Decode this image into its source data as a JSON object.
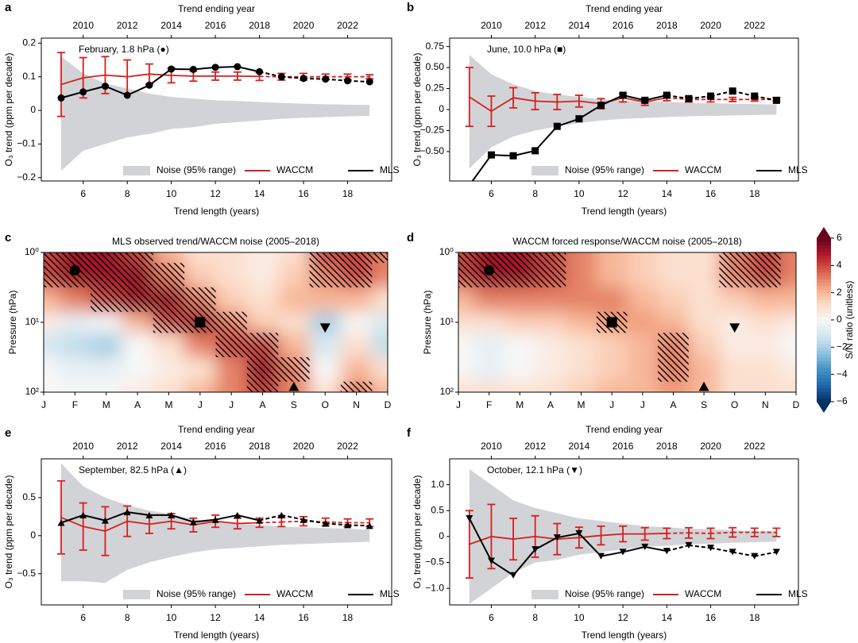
{
  "chart_data": [
    {
      "type": "line",
      "panel": "a",
      "title": "February, 1.8 hPa (●)",
      "xlabel": "Trend length (years)",
      "x2label": "Trend ending year",
      "ylabel": "O₃ trend (ppm per decade)",
      "x": [
        5,
        6,
        7,
        8,
        9,
        10,
        11,
        12,
        13,
        14,
        15,
        16,
        17,
        18,
        19
      ],
      "xlim": [
        4.1,
        20.0
      ],
      "xticks": [
        6,
        8,
        10,
        12,
        14,
        16,
        18
      ],
      "x2lim": [
        2008.1,
        2024.0
      ],
      "x2ticks": [
        2010,
        2012,
        2014,
        2016,
        2018,
        2020,
        2022
      ],
      "ylim": [
        -0.21,
        0.215
      ],
      "yticks": [
        {
          "value": -0.2,
          "label": "−0.2"
        },
        {
          "value": -0.1,
          "label": "−0.1"
        },
        0,
        0.1,
        0.2
      ],
      "dashed_after": 14,
      "legend": "lower center",
      "series": [
        {
          "name": "Noise (95% range)",
          "color": "#d2d3d6",
          "upper": [
            0.16,
            0.11,
            0.08,
            0.065,
            0.05,
            0.04,
            0.035,
            0.03,
            0.028,
            0.025,
            0.022,
            0.02,
            0.018,
            0.017,
            0.016
          ],
          "lower": [
            -0.18,
            -0.12,
            -0.1,
            -0.08,
            -0.07,
            -0.055,
            -0.05,
            -0.04,
            -0.035,
            -0.03,
            -0.025,
            -0.022,
            -0.02,
            -0.018,
            -0.016
          ]
        },
        {
          "name": "WACCM",
          "color": "#d42020",
          "values": [
            0.077,
            0.097,
            0.105,
            0.1,
            0.108,
            0.104,
            0.102,
            0.102,
            0.102,
            0.101,
            0.1,
            0.1,
            0.1,
            0.1,
            0.1
          ],
          "errors": [
            0.095,
            0.06,
            0.055,
            0.05,
            0.03,
            0.022,
            0.015,
            0.012,
            0.012,
            0.012,
            0.01,
            0.01,
            0.008,
            0.008,
            0.006
          ]
        },
        {
          "name": "MLS",
          "color": "#000000",
          "marker": "circle",
          "values": [
            0.037,
            0.055,
            0.072,
            0.045,
            0.075,
            0.123,
            0.122,
            0.128,
            0.13,
            0.115,
            0.1,
            0.095,
            0.093,
            0.088,
            0.085
          ]
        }
      ]
    },
    {
      "type": "line",
      "panel": "b",
      "title": "June, 10.0 hPa (■)",
      "xlabel": "Trend length (years)",
      "x2label": "Trend ending year",
      "ylabel": "O₃ trend (ppm per decade)",
      "x": [
        5,
        6,
        7,
        8,
        9,
        10,
        11,
        12,
        13,
        14,
        15,
        16,
        17,
        18,
        19
      ],
      "xlim": [
        4.1,
        20.0
      ],
      "xticks": [
        6,
        8,
        10,
        12,
        14,
        16,
        18
      ],
      "x2lim": [
        2008.1,
        2024.0
      ],
      "x2ticks": [
        2010,
        2012,
        2014,
        2016,
        2018,
        2020,
        2022
      ],
      "ylim": [
        -0.85,
        0.85
      ],
      "yticks": [
        {
          "value": -0.5,
          "label": "−0.50"
        },
        {
          "value": -0.25,
          "label": "−0.25"
        },
        0,
        0.25,
        {
          "value": 0.5,
          "label": "0.50"
        },
        0.75
      ],
      "dashed_after": 14,
      "legend": "lower center",
      "series": [
        {
          "name": "Noise (95% range)",
          "color": "#d2d3d6",
          "upper": [
            0.65,
            0.42,
            0.3,
            0.22,
            0.18,
            0.15,
            0.12,
            0.11,
            0.1,
            0.09,
            0.08,
            0.075,
            0.07,
            0.065,
            0.06
          ],
          "lower": [
            -0.7,
            -0.45,
            -0.32,
            -0.25,
            -0.2,
            -0.16,
            -0.13,
            -0.11,
            -0.1,
            -0.09,
            -0.08,
            -0.075,
            -0.07,
            -0.065,
            -0.06
          ]
        },
        {
          "name": "WACCM",
          "color": "#d42020",
          "values": [
            0.15,
            -0.02,
            0.14,
            0.1,
            0.09,
            0.1,
            0.07,
            0.14,
            0.09,
            0.14,
            0.12,
            0.12,
            0.12,
            0.12,
            0.12
          ],
          "errors": [
            0.35,
            0.18,
            0.12,
            0.1,
            0.09,
            0.07,
            0.06,
            0.05,
            0.04,
            0.035,
            0.03,
            0.03,
            0.025,
            0.02,
            0.02
          ]
        },
        {
          "name": "MLS",
          "color": "#000000",
          "marker": "square",
          "values": [
            -0.9,
            -0.54,
            -0.55,
            -0.49,
            -0.2,
            -0.11,
            0.05,
            0.17,
            0.11,
            0.17,
            0.13,
            0.16,
            0.22,
            0.16,
            0.11
          ]
        }
      ]
    },
    {
      "type": "heatmap",
      "panel": "c",
      "title": "MLS observed trend/WACCM noise (2005–2018)",
      "ylabel": "Pressure (hPa)",
      "categories": [
        "J",
        "F",
        "M",
        "A",
        "M",
        "J",
        "J",
        "A",
        "S",
        "O",
        "N",
        "D"
      ],
      "pressure": [
        1,
        2,
        5,
        10,
        20,
        50,
        100
      ],
      "log": true,
      "ylim": [
        1,
        100
      ],
      "yticks": [
        {
          "value": 1,
          "label": "10⁰"
        },
        {
          "value": 10,
          "label": "10¹"
        },
        {
          "value": 100,
          "label": "10²"
        }
      ],
      "z": [
        [
          4,
          5,
          5,
          4,
          2,
          1,
          1,
          0.5,
          1,
          4,
          4,
          3
        ],
        [
          4,
          5,
          5,
          5,
          3,
          1.5,
          1,
          0.5,
          1.5,
          3,
          4,
          3
        ],
        [
          2,
          3,
          4,
          5,
          5,
          3,
          1.5,
          1,
          2,
          2,
          2,
          1
        ],
        [
          0.5,
          -0.5,
          0,
          2,
          4,
          5,
          3,
          1.5,
          1,
          -2,
          0,
          -1
        ],
        [
          -1,
          -1.5,
          -2,
          0,
          1,
          3,
          4,
          4,
          2,
          -1,
          1,
          -1.5
        ],
        [
          0,
          -0.5,
          -0.5,
          0,
          0.5,
          1,
          3,
          5,
          3,
          0,
          2,
          1
        ],
        [
          0,
          0,
          0,
          0.5,
          1,
          2,
          3,
          4,
          3,
          1,
          3,
          2
        ]
      ],
      "hatch": [
        [
          1,
          1,
          1,
          1,
          0,
          0,
          0,
          0,
          0,
          1,
          1,
          1
        ],
        [
          1,
          1,
          1,
          1,
          1,
          0,
          0,
          0,
          0,
          1,
          1,
          0
        ],
        [
          0,
          0,
          1,
          1,
          1,
          1,
          0,
          0,
          0,
          0,
          0,
          0
        ],
        [
          0,
          0,
          0,
          0,
          1,
          1,
          1,
          0,
          0,
          0,
          0,
          0
        ],
        [
          0,
          0,
          0,
          0,
          0,
          0,
          1,
          1,
          0,
          0,
          0,
          0
        ],
        [
          0,
          0,
          0,
          0,
          0,
          0,
          0,
          1,
          1,
          0,
          0,
          0
        ],
        [
          0,
          0,
          0,
          0,
          0,
          0,
          0,
          1,
          0,
          0,
          1,
          0
        ]
      ],
      "markers": [
        {
          "x": 1,
          "pressure": 1.8,
          "shape": "circle"
        },
        {
          "x": 5,
          "pressure": 10.0,
          "shape": "square"
        },
        {
          "x": 8,
          "pressure": 82.5,
          "shape": "triangle-up"
        },
        {
          "x": 9,
          "pressure": 12.1,
          "shape": "triangle-down"
        }
      ]
    },
    {
      "type": "heatmap",
      "panel": "d",
      "title": "WACCM forced response/WACCM noise (2005–2018)",
      "ylabel": "Pressure (hPa)",
      "categories": [
        "J",
        "F",
        "M",
        "A",
        "M",
        "J",
        "J",
        "A",
        "S",
        "O",
        "N",
        "D"
      ],
      "pressure": [
        1,
        2,
        5,
        10,
        20,
        50,
        100
      ],
      "log": true,
      "ylim": [
        1,
        100
      ],
      "yticks": [
        {
          "value": 1,
          "label": "10⁰"
        },
        {
          "value": 10,
          "label": "10¹"
        },
        {
          "value": 100,
          "label": "10²"
        }
      ],
      "z": [
        [
          4,
          5,
          5,
          4,
          3,
          2,
          1.5,
          1,
          1,
          3,
          4,
          3
        ],
        [
          4,
          5,
          5,
          4,
          3,
          2,
          1.5,
          1,
          1,
          3,
          4,
          3
        ],
        [
          2,
          3,
          3,
          3,
          3,
          3,
          2,
          1.5,
          1,
          1.5,
          2,
          2
        ],
        [
          1,
          1,
          1.5,
          1.5,
          2,
          2.5,
          2.5,
          2,
          1,
          0.5,
          1,
          0.5
        ],
        [
          0,
          -0.5,
          0,
          0.5,
          1,
          1.5,
          2,
          3,
          1.5,
          0.5,
          0.5,
          0
        ],
        [
          0,
          -0.5,
          0,
          0.5,
          1,
          1.5,
          2,
          3,
          2,
          1,
          1,
          0.5
        ],
        [
          1,
          1,
          1,
          1,
          1.5,
          2,
          2,
          2.5,
          2,
          1,
          1,
          1
        ]
      ],
      "hatch": [
        [
          1,
          1,
          1,
          1,
          0,
          0,
          0,
          0,
          0,
          1,
          1,
          0
        ],
        [
          1,
          1,
          1,
          1,
          0,
          0,
          0,
          0,
          0,
          1,
          1,
          0
        ],
        [
          0,
          0,
          0,
          0,
          0,
          0,
          0,
          0,
          0,
          0,
          0,
          0
        ],
        [
          0,
          0,
          0,
          0,
          0,
          1,
          0,
          0,
          0,
          0,
          0,
          0
        ],
        [
          0,
          0,
          0,
          0,
          0,
          0,
          0,
          1,
          0,
          0,
          0,
          0
        ],
        [
          0,
          0,
          0,
          0,
          0,
          0,
          0,
          1,
          0,
          0,
          0,
          0
        ],
        [
          0,
          0,
          0,
          0,
          0,
          0,
          0,
          0,
          0,
          0,
          0,
          0
        ]
      ],
      "markers": [
        {
          "x": 1,
          "pressure": 1.8,
          "shape": "circle"
        },
        {
          "x": 5,
          "pressure": 10.0,
          "shape": "square"
        },
        {
          "x": 8,
          "pressure": 82.5,
          "shape": "triangle-up"
        },
        {
          "x": 9,
          "pressure": 12.1,
          "shape": "triangle-down"
        }
      ],
      "colorbar": {
        "label": "S/N ratio (unitless)",
        "lim": [
          -6,
          6
        ],
        "ticks": [
          {
            "value": -6,
            "label": "−6"
          },
          {
            "value": -4,
            "label": "−4"
          },
          {
            "value": -2,
            "label": "−2"
          },
          0,
          2,
          4,
          6
        ],
        "colors": [
          "#053061",
          "#2166ac",
          "#4393c3",
          "#92c5de",
          "#d1e5f0",
          "#f7f7f7",
          "#fddbc7",
          "#f4a582",
          "#d6604d",
          "#b2182b",
          "#67001f"
        ]
      }
    },
    {
      "type": "line",
      "panel": "e",
      "title": "September, 82.5 hPa (▲)",
      "xlabel": "Trend length (years)",
      "x2label": "Trend ending year",
      "ylabel": "O₃ trend (ppm per decade)",
      "x": [
        5,
        6,
        7,
        8,
        9,
        10,
        11,
        12,
        13,
        14,
        15,
        16,
        17,
        18,
        19
      ],
      "xlim": [
        4.1,
        20.0
      ],
      "xticks": [
        6,
        8,
        10,
        12,
        14,
        16,
        18
      ],
      "x2lim": [
        2008.1,
        2024.0
      ],
      "x2ticks": [
        2010,
        2012,
        2014,
        2016,
        2018,
        2020,
        2022
      ],
      "ylim": [
        -0.91,
        1.01
      ],
      "yticks": [
        {
          "value": -0.5,
          "label": "−0.5"
        },
        0,
        0.5
      ],
      "dashed_after": 14,
      "legend": "lower center",
      "series": [
        {
          "name": "Noise (95% range)",
          "color": "#d2d3d6",
          "upper": [
            0.95,
            0.65,
            0.5,
            0.4,
            0.33,
            0.28,
            0.22,
            0.18,
            0.16,
            0.14,
            0.12,
            0.11,
            0.1,
            0.09,
            0.08
          ],
          "lower": [
            -0.6,
            -0.6,
            -0.62,
            -0.45,
            -0.35,
            -0.28,
            -0.22,
            -0.18,
            -0.16,
            -0.14,
            -0.12,
            -0.11,
            -0.1,
            -0.09,
            -0.08
          ]
        },
        {
          "name": "WACCM",
          "color": "#d42020",
          "values": [
            0.24,
            0.12,
            0.06,
            0.19,
            0.15,
            0.19,
            0.14,
            0.19,
            0.16,
            0.17,
            0.18,
            0.19,
            0.18,
            0.17,
            0.17
          ],
          "errors": [
            0.48,
            0.31,
            0.32,
            0.2,
            0.12,
            0.1,
            0.09,
            0.08,
            0.07,
            0.06,
            0.06,
            0.06,
            0.05,
            0.05,
            0.05
          ]
        },
        {
          "name": "MLS",
          "color": "#000000",
          "marker": "triangle-up",
          "values": [
            0.17,
            0.27,
            0.2,
            0.31,
            0.27,
            0.27,
            0.18,
            0.21,
            0.27,
            0.2,
            0.27,
            0.21,
            0.16,
            0.14,
            0.13
          ]
        }
      ]
    },
    {
      "type": "line",
      "panel": "f",
      "title": "October, 12.1 hPa (▼)",
      "xlabel": "Trend length (years)",
      "x2label": "Trend ending year",
      "ylabel": "O₃ trend (ppm per decade)",
      "x": [
        5,
        6,
        7,
        8,
        9,
        10,
        11,
        12,
        13,
        14,
        15,
        16,
        17,
        18,
        19
      ],
      "xlim": [
        4.1,
        20.0
      ],
      "xticks": [
        6,
        8,
        10,
        12,
        14,
        16,
        18
      ],
      "x2lim": [
        2008.1,
        2024.0
      ],
      "x2ticks": [
        2010,
        2012,
        2014,
        2016,
        2018,
        2020,
        2022
      ],
      "ylim": [
        -1.32,
        1.5
      ],
      "yticks": [
        {
          "value": -1,
          "label": "−1.0"
        },
        {
          "value": -0.5,
          "label": "−0.5"
        },
        0,
        0.5,
        {
          "value": 1,
          "label": "1.0"
        }
      ],
      "dashed_after": 14,
      "legend": "lower center",
      "series": [
        {
          "name": "Noise (95% range)",
          "color": "#d2d3d6",
          "upper": [
            1.3,
            1.0,
            0.7,
            0.55,
            0.45,
            0.35,
            0.3,
            0.25,
            0.2,
            0.18,
            0.15,
            0.14,
            0.12,
            0.11,
            0.1
          ],
          "lower": [
            -1.3,
            -1.0,
            -0.7,
            -0.5,
            -0.45,
            -0.35,
            -0.3,
            -0.25,
            -0.2,
            -0.18,
            -0.15,
            -0.14,
            -0.12,
            -0.11,
            -0.1
          ]
        },
        {
          "name": "WACCM",
          "color": "#d42020",
          "values": [
            -0.15,
            0.0,
            -0.05,
            0.0,
            -0.05,
            -0.02,
            0.02,
            0.05,
            0.05,
            0.06,
            0.07,
            0.06,
            0.08,
            0.08,
            0.08
          ],
          "errors": [
            0.65,
            0.62,
            0.4,
            0.4,
            0.3,
            0.2,
            0.18,
            0.15,
            0.12,
            0.1,
            0.1,
            0.1,
            0.09,
            0.08,
            0.08
          ]
        },
        {
          "name": "MLS",
          "color": "#000000",
          "marker": "triangle-down",
          "values": [
            0.35,
            -0.47,
            -0.75,
            -0.25,
            -0.02,
            0.06,
            -0.38,
            -0.3,
            -0.2,
            -0.28,
            -0.17,
            -0.22,
            -0.3,
            -0.38,
            -0.3
          ]
        }
      ]
    }
  ]
}
